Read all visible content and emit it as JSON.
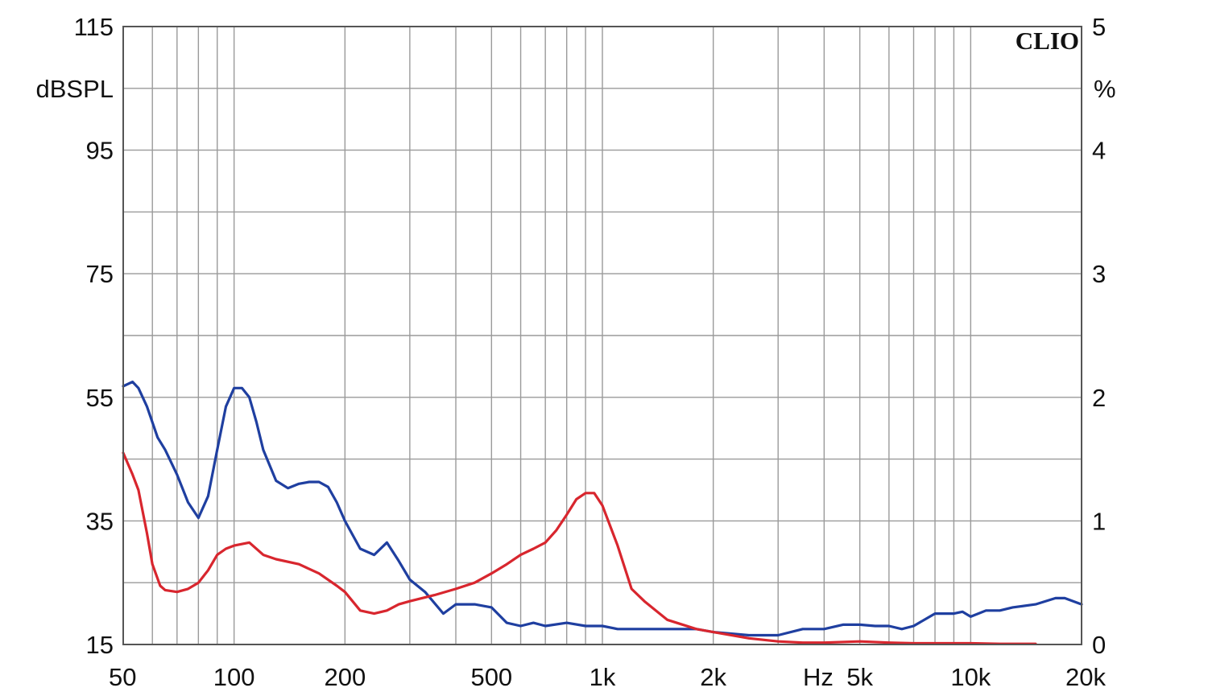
{
  "chart_data": {
    "type": "line",
    "brand": "CLIO",
    "x_scale": "log",
    "xlim": [
      50,
      20000
    ],
    "x_ticks": [
      {
        "value": 50,
        "label": "50"
      },
      {
        "value": 100,
        "label": "100"
      },
      {
        "value": 200,
        "label": "200"
      },
      {
        "value": 500,
        "label": "500"
      },
      {
        "value": 1000,
        "label": "1k"
      },
      {
        "value": 2000,
        "label": "2k"
      },
      {
        "value": 5000,
        "label": "5k"
      },
      {
        "value": 10000,
        "label": "10k"
      },
      {
        "value": 20000,
        "label": "20k"
      }
    ],
    "x_unit_label": "Hz",
    "left_axis": {
      "label": "dBSPL",
      "ylim": [
        15,
        115
      ],
      "tick_labels": [
        "15",
        "35",
        "55",
        "75",
        "95",
        "115"
      ],
      "tick_values": [
        15,
        35,
        55,
        75,
        95,
        115
      ]
    },
    "right_axis": {
      "label": "%",
      "ylim": [
        0,
        5
      ],
      "tick_labels": [
        "0",
        "1",
        "2",
        "3",
        "4",
        "5"
      ],
      "tick_values": [
        0,
        1,
        2,
        3,
        4,
        5
      ]
    },
    "grid": true,
    "series": [
      {
        "color": "#1f3fa0",
        "axis": "left",
        "x": [
          50,
          53,
          55,
          58,
          62,
          65,
          70,
          75,
          80,
          85,
          90,
          95,
          100,
          105,
          110,
          115,
          120,
          130,
          140,
          150,
          160,
          170,
          180,
          190,
          200,
          220,
          240,
          260,
          280,
          300,
          330,
          370,
          400,
          450,
          500,
          550,
          600,
          650,
          700,
          800,
          900,
          1000,
          1100,
          1200,
          1500,
          1800,
          2000,
          2500,
          3000,
          3500,
          4000,
          4500,
          5000,
          5500,
          6000,
          6500,
          7000,
          8000,
          9000,
          9500,
          10000,
          11000,
          12000,
          13000,
          15000,
          17000,
          18000,
          20000
        ],
        "y": [
          56.8,
          57.5,
          56.5,
          53.5,
          48.5,
          46.5,
          42.5,
          38.0,
          35.5,
          39.0,
          46.5,
          53.5,
          56.5,
          56.5,
          55.0,
          51.0,
          46.5,
          41.5,
          40.3,
          41.0,
          41.3,
          41.3,
          40.5,
          38.0,
          35.0,
          30.5,
          29.5,
          31.5,
          28.5,
          25.5,
          23.5,
          20.0,
          21.5,
          21.5,
          21.0,
          18.5,
          18.0,
          18.5,
          18.0,
          18.5,
          18.0,
          18.0,
          17.5,
          17.5,
          17.5,
          17.5,
          17.0,
          16.5,
          16.5,
          17.5,
          17.5,
          18.2,
          18.2,
          18.0,
          18.0,
          17.5,
          18.0,
          20.0,
          20.0,
          20.3,
          19.5,
          20.5,
          20.5,
          21.0,
          21.5,
          22.5,
          22.5,
          21.5
        ]
      },
      {
        "color": "#d8262e",
        "axis": "left",
        "x": [
          50,
          53,
          55,
          58,
          60,
          63,
          65,
          70,
          75,
          80,
          85,
          90,
          95,
          100,
          110,
          120,
          130,
          150,
          170,
          190,
          200,
          220,
          240,
          260,
          280,
          300,
          350,
          400,
          450,
          500,
          550,
          600,
          650,
          700,
          750,
          800,
          850,
          900,
          950,
          1000,
          1100,
          1200,
          1300,
          1500,
          1800,
          2000,
          2500,
          3000,
          3500,
          4000,
          5000,
          6000,
          7000,
          8000,
          10000,
          12000,
          15000
        ],
        "y": [
          46.0,
          42.5,
          40.0,
          33.0,
          28.0,
          24.5,
          23.8,
          23.5,
          24.0,
          25.0,
          27.0,
          29.5,
          30.5,
          31.0,
          31.5,
          29.5,
          28.8,
          28.0,
          26.5,
          24.5,
          23.5,
          20.5,
          20.0,
          20.5,
          21.5,
          22.0,
          23.0,
          24.0,
          25.0,
          26.5,
          28.0,
          29.5,
          30.5,
          31.5,
          33.5,
          36.0,
          38.5,
          39.5,
          39.5,
          37.5,
          31.0,
          24.0,
          22.0,
          19.0,
          17.5,
          17.0,
          16.0,
          15.5,
          15.3,
          15.3,
          15.5,
          15.3,
          15.2,
          15.2,
          15.2,
          15.1,
          15.1
        ]
      }
    ]
  }
}
